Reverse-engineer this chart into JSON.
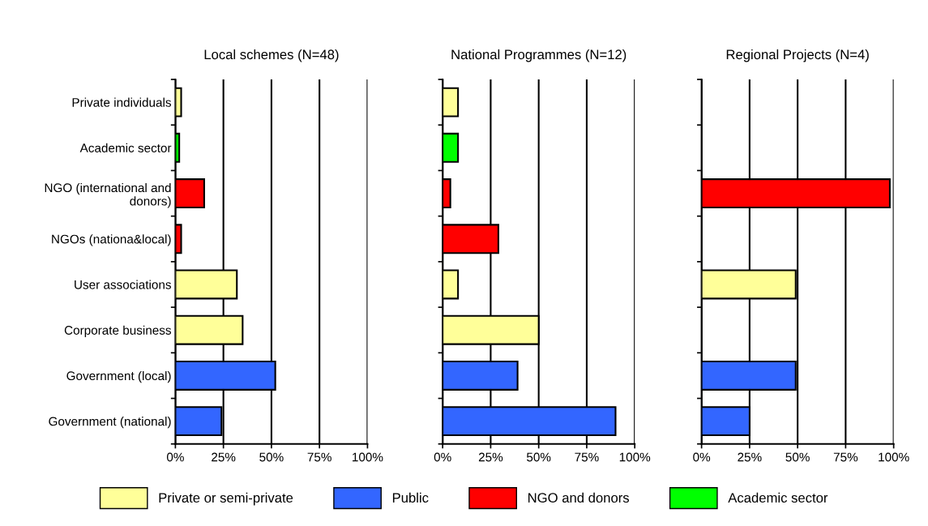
{
  "chart_data": [
    {
      "type": "bar",
      "orientation": "horizontal",
      "title": "Local schemes (N=48)",
      "categories": [
        "Private individuals",
        "Academic sector",
        "NGO (international and donors)",
        "NGOs (nationa&local)",
        "User associations",
        "Corporate business",
        "Government (local)",
        "Government (national)"
      ],
      "series": [
        {
          "name": "Private or semi-private",
          "color": "#ffff99",
          "values": [
            3,
            null,
            null,
            null,
            32,
            35,
            null,
            null
          ]
        },
        {
          "name": "Public",
          "color": "#3366ff",
          "values": [
            null,
            null,
            null,
            null,
            null,
            null,
            52,
            24
          ]
        },
        {
          "name": "NGO and donors",
          "color": "#ff0000",
          "values": [
            null,
            null,
            15,
            3,
            null,
            null,
            null,
            null
          ]
        },
        {
          "name": "Academic sector",
          "color": "#00ff00",
          "values": [
            null,
            2,
            null,
            null,
            null,
            null,
            null,
            null
          ]
        }
      ],
      "xlim": [
        0,
        100
      ],
      "xticks": [
        {
          "value": 0,
          "label": "0%"
        },
        {
          "value": 25,
          "label": "25%"
        },
        {
          "value": 50,
          "label": "50%"
        },
        {
          "value": 75,
          "label": "75%"
        },
        {
          "value": 100,
          "label": "100%"
        }
      ],
      "grid": "x",
      "legend": "bottom"
    },
    {
      "type": "bar",
      "orientation": "horizontal",
      "title": "National Programmes (N=12)",
      "categories": [
        null,
        null,
        null,
        null,
        null,
        null,
        null,
        null
      ],
      "series": [
        {
          "color": "#ffff99",
          "values": [
            8,
            null,
            null,
            null,
            8,
            50,
            null,
            null
          ]
        },
        {
          "color": "#3366ff",
          "values": [
            null,
            null,
            null,
            null,
            null,
            null,
            39,
            90
          ]
        },
        {
          "color": "#ff0000",
          "values": [
            null,
            null,
            4,
            29,
            null,
            null,
            null,
            null
          ]
        },
        {
          "color": "#00ff00",
          "values": [
            null,
            8,
            null,
            null,
            null,
            null,
            null,
            null
          ]
        }
      ],
      "xlim": [
        0,
        100
      ],
      "xticks": [
        {
          "value": 0,
          "label": "0%"
        },
        {
          "value": 25,
          "label": "25%"
        },
        {
          "value": 50,
          "label": "50%"
        },
        {
          "value": 75,
          "label": "75%"
        },
        {
          "value": 100,
          "label": "100%"
        }
      ],
      "grid": "x"
    },
    {
      "type": "bar",
      "orientation": "horizontal",
      "title": "Regional Projects (N=4)",
      "categories": [
        null,
        null,
        null,
        null,
        null,
        null,
        null,
        null
      ],
      "series": [
        {
          "color": "#ffff99",
          "values": [
            null,
            null,
            null,
            null,
            49,
            null,
            null,
            null
          ]
        },
        {
          "color": "#3366ff",
          "values": [
            null,
            null,
            null,
            null,
            null,
            null,
            49,
            25
          ]
        },
        {
          "color": "#ff0000",
          "values": [
            null,
            null,
            98,
            null,
            null,
            null,
            null,
            null
          ]
        }
      ],
      "xlim": [
        0,
        100
      ],
      "xticks": [
        {
          "value": 0,
          "label": "0%"
        },
        {
          "value": 25,
          "label": "25%"
        },
        {
          "value": 50,
          "label": "50%"
        },
        {
          "value": 75,
          "label": "75%"
        },
        {
          "value": 100,
          "label": "100%"
        }
      ],
      "grid": "x"
    }
  ]
}
